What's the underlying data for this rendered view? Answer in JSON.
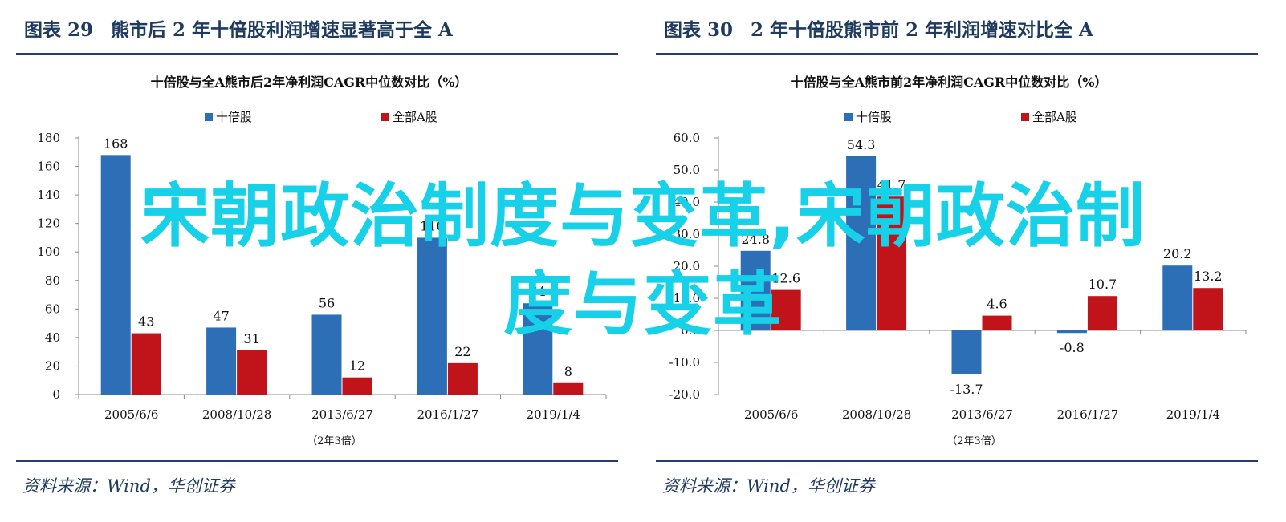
{
  "figures": [
    {
      "fig_label": "图表 29",
      "fig_title": "熊市后 2 年十倍股利润增速显著高于全 A",
      "source": "资料来源：Wind，华创证券",
      "chart_data": {
        "type": "bar",
        "title": "十倍股与全A熊市后2年净利润CAGR中位数对比（%）",
        "xlabel": "（2年3倍）",
        "ylabel": "",
        "categories": [
          "2005/6/6",
          "2008/10/28",
          "2013/6/27",
          "2016/1/27",
          "2019/1/4"
        ],
        "series": [
          {
            "name": "十倍股",
            "color": "#2c6fb7",
            "values": [
              168,
              47,
              56,
              110,
              64
            ],
            "labels": [
              "168",
              "47",
              "56",
              "110",
              "64"
            ]
          },
          {
            "name": "全部A股",
            "color": "#c0141a",
            "values": [
              43,
              31,
              12,
              22,
              8
            ],
            "labels": [
              "43",
              "31",
              "12",
              "22",
              "8"
            ]
          }
        ],
        "ylim": [
          0,
          180
        ],
        "yticks": [
          0,
          20,
          40,
          60,
          80,
          100,
          120,
          140,
          160,
          180
        ],
        "ytick_labels": [
          "0",
          "20",
          "40",
          "60",
          "80",
          "100",
          "120",
          "140",
          "160",
          "180"
        ],
        "legend": "top-center",
        "grid": false
      }
    },
    {
      "fig_label": "图表 30",
      "fig_title": "2 年十倍股熊市前 2 年利润增速对比全 A",
      "source": "资料来源：Wind，华创证券",
      "chart_data": {
        "type": "bar",
        "title": "十倍股与全A熊市前2年净利润CAGR中位数对比（%）",
        "xlabel": "（2年3倍）",
        "ylabel": "",
        "categories": [
          "2005/6/6",
          "2008/10/28",
          "2013/6/27",
          "2016/1/27",
          "2019/1/4"
        ],
        "series": [
          {
            "name": "十倍股",
            "color": "#2c6fb7",
            "values": [
              24.8,
              54.3,
              -13.7,
              -0.8,
              20.2
            ],
            "labels": [
              "24.8",
              "54.3",
              "-13.7",
              "-0.8",
              "20.2"
            ]
          },
          {
            "name": "全部A股",
            "color": "#c0141a",
            "values": [
              12.6,
              41.7,
              4.6,
              10.7,
              13.2
            ],
            "labels": [
              "12.6",
              "41.7",
              "4.6",
              "10.7",
              "13.2"
            ]
          }
        ],
        "ylim": [
          -20,
          60
        ],
        "yticks": [
          -20,
          -10,
          0,
          10,
          20,
          30,
          40,
          50,
          60
        ],
        "ytick_labels": [
          "-20.0",
          "-10.0",
          "0.0",
          "10.0",
          "20.0",
          "30.0",
          "40.0",
          "50.0",
          "60.0"
        ],
        "legend": "top-center",
        "grid": false
      }
    }
  ],
  "watermark": {
    "line1": "宋朝政治制度与变革,宋朝政治制",
    "line2": "度与变革"
  }
}
